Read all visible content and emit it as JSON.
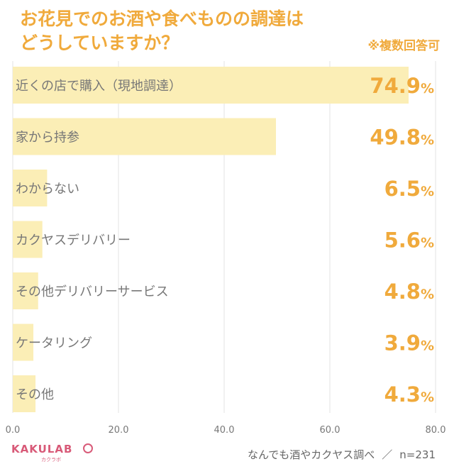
{
  "title_lines": [
    "お花見でのお酒や食べものの調達は",
    "どうしていますか？"
  ],
  "note": "※複数回答可",
  "footer": {
    "logo": "KAKULAB",
    "logo_sub": "カクラボ",
    "source": "なんでも酒やカクヤス調べ",
    "separator": "／",
    "sample": "n=231"
  },
  "colors": {
    "accent": "#f0aa3c",
    "bar": "#fbeeb6",
    "grid": "#e3e3e3",
    "label": "#777777",
    "brand": "#d85a78"
  },
  "chart_data": {
    "type": "bar",
    "orientation": "horizontal",
    "categories": [
      "近くの店で購入（現地調達）",
      "家から持参",
      "わからない",
      "カクヤスデリバリー",
      "その他デリバリーサービス",
      "ケータリング",
      "その他"
    ],
    "values": [
      74.9,
      49.8,
      6.5,
      5.6,
      4.8,
      3.9,
      4.3
    ],
    "value_suffix": "%",
    "xlim": [
      0,
      80
    ],
    "xticks": [
      "0.0",
      "20.0",
      "40.0",
      "60.0",
      "80.0"
    ],
    "grid": true
  }
}
